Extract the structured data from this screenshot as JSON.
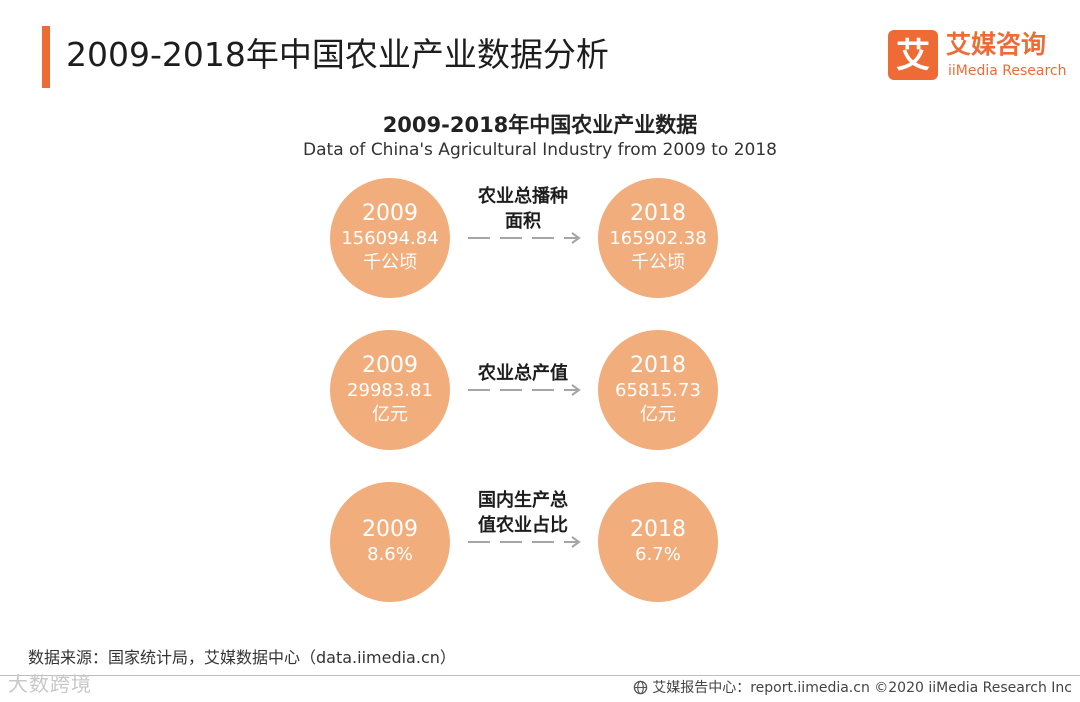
{
  "header": {
    "title": "2009-2018年中国农业产业数据分析",
    "accent_color": "#ef6b36"
  },
  "logo": {
    "mark_char": "艾",
    "name": "艾媒咨询",
    "subtitle": "iiMedia Research"
  },
  "chart_data": {
    "type": "comparison",
    "title": "2009-2018年中国农业产业数据",
    "subtitle": "Data of China's Agricultural Industry from 2009 to 2018",
    "circle_color": "#f2ad7c",
    "metrics": [
      {
        "label_lines": [
          "农业总播种",
          "面积"
        ],
        "from": {
          "year": "2009",
          "value": "156094.84",
          "unit": "千公顷"
        },
        "to": {
          "year": "2018",
          "value": "165902.38",
          "unit": "千公顷"
        }
      },
      {
        "label_lines": [
          "农业总产值"
        ],
        "from": {
          "year": "2009",
          "value": "29983.81",
          "unit": "亿元"
        },
        "to": {
          "year": "2018",
          "value": "65815.73",
          "unit": "亿元"
        }
      },
      {
        "label_lines": [
          "国内生产总",
          "值农业占比"
        ],
        "from": {
          "year": "2009",
          "value": "8.6%",
          "unit": ""
        },
        "to": {
          "year": "2018",
          "value": "6.7%",
          "unit": ""
        }
      }
    ]
  },
  "footer": {
    "source": "数据来源：国家统计局，艾媒数据中心（data.iimedia.cn）",
    "watermark": "大数跨境",
    "credit": "艾媒报告中心：report.iimedia.cn  ©2020  iiMedia Research  Inc"
  }
}
